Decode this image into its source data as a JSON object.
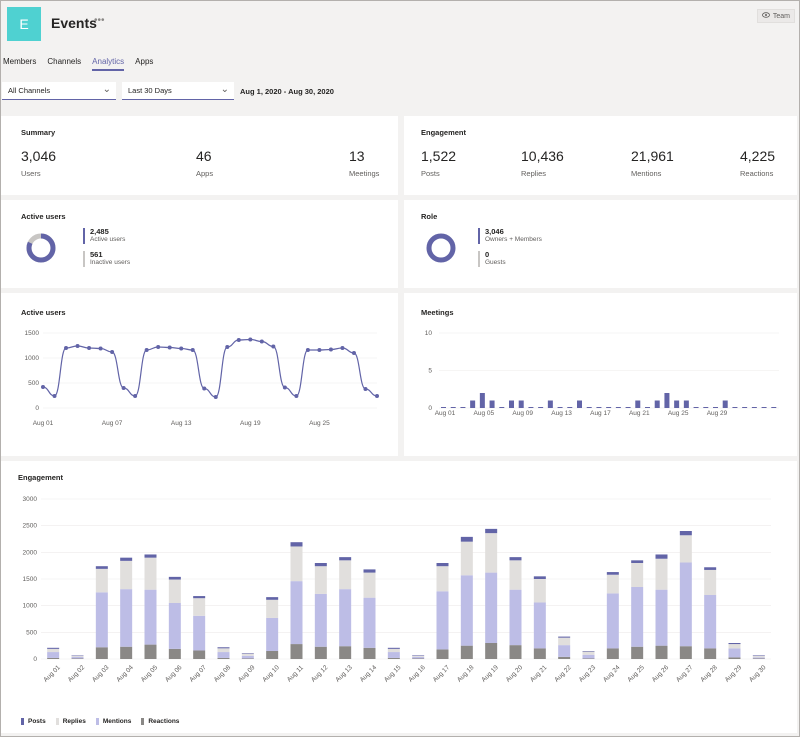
{
  "team": {
    "initial": "E",
    "name": "Events",
    "more": "•••",
    "team_button": "Team"
  },
  "tabs": [
    "Members",
    "Channels",
    "Analytics",
    "Apps"
  ],
  "active_tab": "Analytics",
  "filters": {
    "channel": "All Channels",
    "period": "Last 30 Days",
    "date_range": "Aug 1, 2020 - Aug 30, 2020"
  },
  "summary": {
    "title": "Summary",
    "stats": [
      {
        "value": "3,046",
        "label": "Users"
      },
      {
        "value": "46",
        "label": "Apps"
      },
      {
        "value": "13",
        "label": "Meetings"
      }
    ]
  },
  "engagement_summary": {
    "title": "Engagement",
    "stats": [
      {
        "value": "1,522",
        "label": "Posts"
      },
      {
        "value": "10,436",
        "label": "Replies"
      },
      {
        "value": "21,961",
        "label": "Mentions"
      },
      {
        "value": "4,225",
        "label": "Reactions"
      }
    ]
  },
  "active_users_card": {
    "title": "Active users",
    "items": [
      {
        "value": "2,485",
        "label": "Active users",
        "color": "#6264a7"
      },
      {
        "value": "561",
        "label": "Inactive users",
        "color": "#c8c6c4"
      }
    ]
  },
  "role_card": {
    "title": "Role",
    "items": [
      {
        "value": "3,046",
        "label": "Owners + Members",
        "color": "#6264a7"
      },
      {
        "value": "0",
        "label": "Guests",
        "color": "#c8c6c4"
      }
    ]
  },
  "colors": {
    "accent": "#6264a7",
    "posts": "#6264a7",
    "replies": "#e1dfdd",
    "mentions": "#bdbde6",
    "reactions": "#8a8886",
    "teal": "#4fd1d1"
  },
  "chart_data": [
    {
      "title": "Active users",
      "type": "line",
      "x_ticks": [
        "Aug 01",
        "Aug 07",
        "Aug 13",
        "Aug 19",
        "Aug 25"
      ],
      "ylim": [
        0,
        1500
      ],
      "y_ticks": [
        0,
        500,
        1000,
        1500
      ],
      "values": [
        420,
        240,
        1200,
        1240,
        1200,
        1190,
        1120,
        400,
        240,
        1160,
        1220,
        1210,
        1190,
        1160,
        390,
        220,
        1220,
        1360,
        1370,
        1330,
        1230,
        410,
        240,
        1160,
        1160,
        1170,
        1200,
        1100,
        380,
        240
      ]
    },
    {
      "title": "Meetings",
      "type": "bar",
      "x_ticks": [
        "Aug 01",
        "Aug 05",
        "Aug 09",
        "Aug 13",
        "Aug 17",
        "Aug 21",
        "Aug 25",
        "Aug 29"
      ],
      "ylim": [
        0,
        10
      ],
      "y_ticks": [
        0,
        5,
        10
      ],
      "values": [
        0,
        0,
        0,
        1,
        2,
        1,
        0,
        1,
        1,
        0,
        0,
        1,
        0,
        0,
        1,
        0,
        0,
        0,
        0,
        0,
        1,
        0,
        1,
        2,
        1,
        1,
        0,
        0,
        0,
        1,
        0,
        0,
        0,
        0,
        0
      ]
    },
    {
      "title": "Engagement",
      "type": "bar",
      "stacked": true,
      "categories": [
        "Aug 01",
        "Aug 02",
        "Aug 03",
        "Aug 04",
        "Aug 05",
        "Aug 06",
        "Aug 07",
        "Aug 08",
        "Aug 09",
        "Aug 10",
        "Aug 11",
        "Aug 12",
        "Aug 13",
        "Aug 14",
        "Aug 15",
        "Aug 16",
        "Aug 17",
        "Aug 18",
        "Aug 19",
        "Aug 20",
        "Aug 21",
        "Aug 22",
        "Aug 23",
        "Aug 24",
        "Aug 25",
        "Aug 26",
        "Aug 27",
        "Aug 28",
        "Aug 29",
        "Aug 30"
      ],
      "ylim": [
        0,
        3000
      ],
      "y_ticks": [
        0,
        500,
        1000,
        1500,
        2000,
        2500,
        3000
      ],
      "series": [
        {
          "name": "Reactions",
          "values": [
            20,
            10,
            220,
            230,
            270,
            190,
            160,
            20,
            10,
            150,
            280,
            230,
            240,
            210,
            20,
            10,
            180,
            250,
            300,
            260,
            200,
            40,
            10,
            200,
            230,
            250,
            240,
            200,
            30,
            10
          ]
        },
        {
          "name": "Mentions",
          "values": [
            110,
            30,
            1030,
            1080,
            1030,
            860,
            650,
            110,
            50,
            620,
            1180,
            990,
            1070,
            940,
            110,
            30,
            1090,
            1320,
            1320,
            1040,
            860,
            220,
            70,
            1030,
            1120,
            1050,
            1570,
            1000,
            170,
            20
          ]
        },
        {
          "name": "Replies",
          "values": [
            60,
            20,
            440,
            530,
            600,
            440,
            330,
            70,
            40,
            340,
            650,
            520,
            540,
            470,
            60,
            20,
            470,
            630,
            740,
            550,
            440,
            140,
            60,
            350,
            450,
            580,
            510,
            470,
            80,
            30
          ]
        },
        {
          "name": "Posts",
          "values": [
            20,
            5,
            50,
            60,
            60,
            50,
            40,
            20,
            10,
            50,
            80,
            60,
            60,
            60,
            20,
            10,
            60,
            90,
            80,
            60,
            50,
            20,
            10,
            50,
            50,
            80,
            80,
            50,
            20,
            10
          ]
        }
      ],
      "legend": [
        "Posts",
        "Replies",
        "Mentions",
        "Reactions"
      ]
    }
  ]
}
